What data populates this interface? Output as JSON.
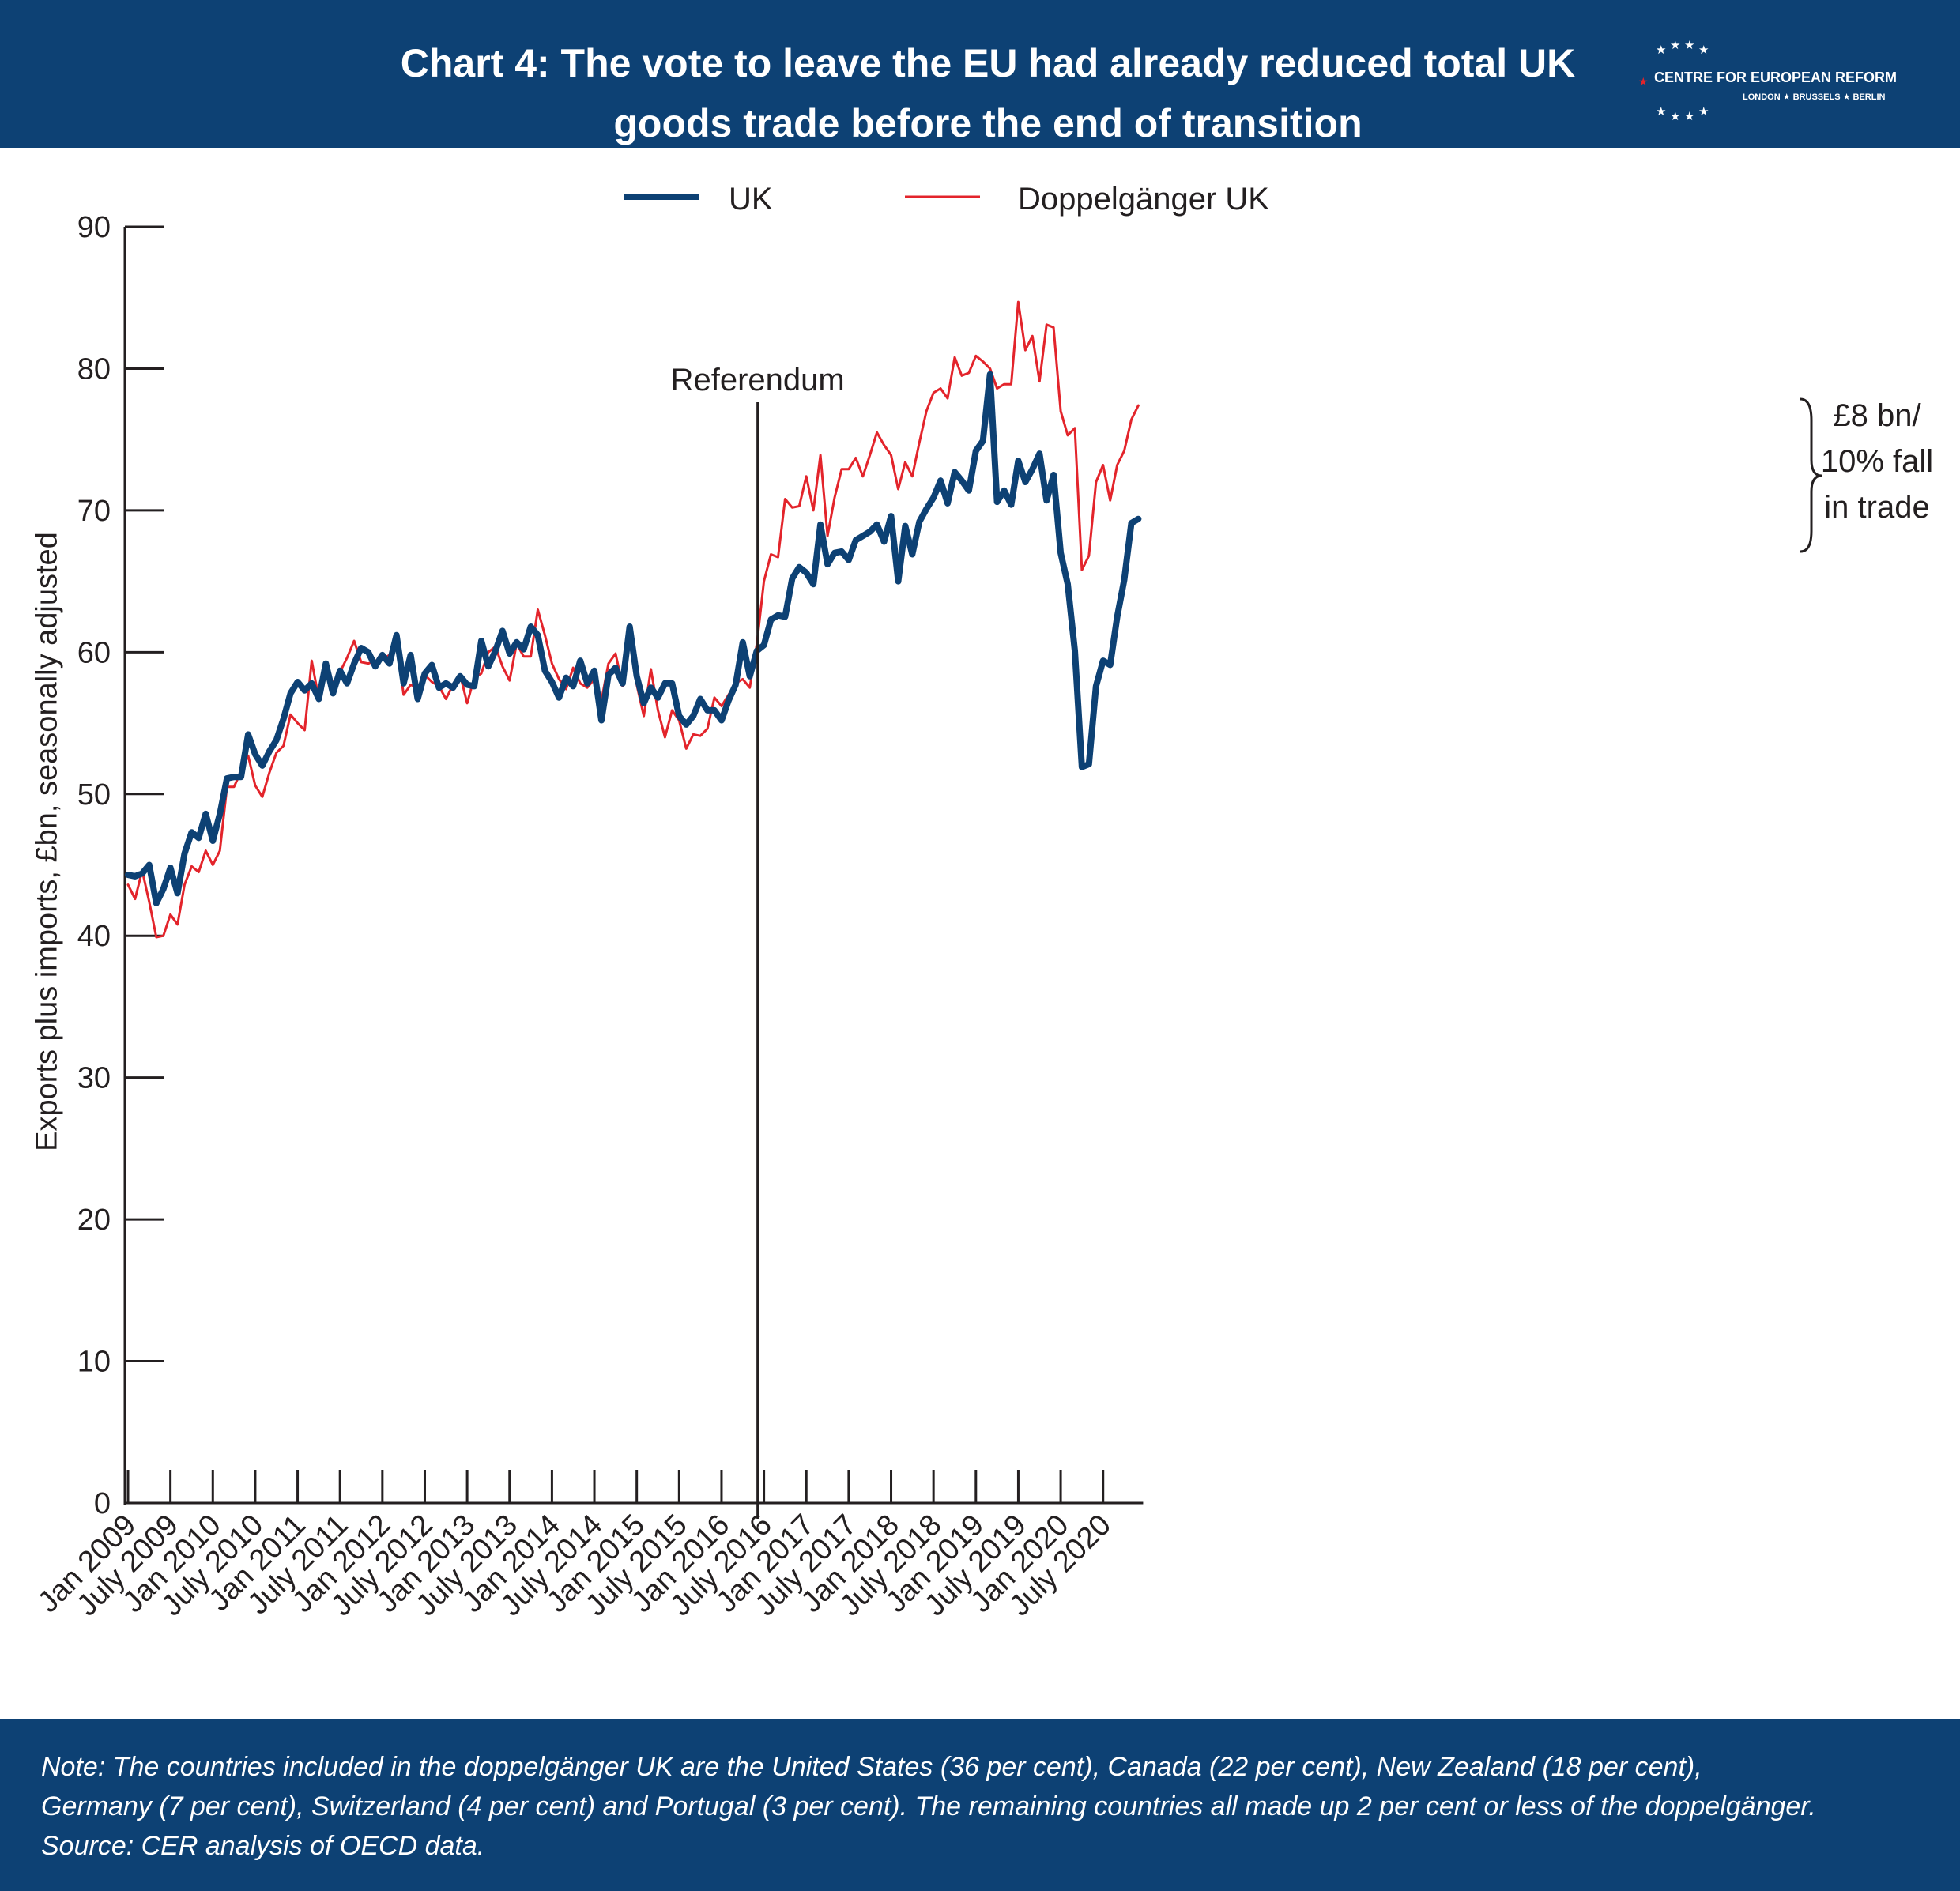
{
  "header": {
    "title_line1": "Chart 4: The vote to leave the EU had already reduced total UK",
    "title_line2": "goods trade before the end of transition",
    "logo_name": "CENTRE FOR EUROPEAN REFORM",
    "logo_cities": "LONDON ★ BRUSSELS ★ BERLIN",
    "background_color": "#0d4174"
  },
  "footer": {
    "note_line1": "Note: The countries included in the doppelgänger UK are the United States (36 per cent), Canada (22 per cent), New Zealand (18 per cent),",
    "note_line2": "Germany (7 per cent), Switzerland (4 per cent) and Portugal (3 per cent). The remaining countries all made up 2 per cent or less of the doppelgänger.",
    "note_line3": "Source: CER analysis of OECD data."
  },
  "chart_data": {
    "type": "line",
    "title": "Chart 4: The vote to leave the EU had already reduced total UK goods trade before the end of transition",
    "ylabel": "Exports plus imports, £bn, seasonally adjusted",
    "xlabel": "",
    "ylim": [
      0,
      90
    ],
    "yticks": [
      "0",
      "10",
      "20",
      "30",
      "40",
      "50",
      "60",
      "70",
      "80",
      "90"
    ],
    "xtick_labels": [
      "Jan 2009",
      "July 2009",
      "Jan 2010",
      "July 2010",
      "Jan 2011",
      "July 2011",
      "Jan 2012",
      "July 2012",
      "Jan 2013",
      "July 2013",
      "Jan 2014",
      "July 2014",
      "Jan 2015",
      "July 2015",
      "Jan 2016",
      "July 2016",
      "Jan 2017",
      "July 2017",
      "Jan 2018",
      "July 2018",
      "Jan 2019",
      "July 2019",
      "Jan 2020",
      "July 2020"
    ],
    "x_start": "Jan 2009",
    "grid": false,
    "legend_position": "top-center",
    "annotation_referendum": "Referendum",
    "referendum_month": "June 2016",
    "gap_annotation_line1": "£8 bn/",
    "gap_annotation_line2": "10% fall",
    "gap_annotation_line3": "in trade",
    "series": [
      {
        "name": "UK",
        "color": "#0d4174",
        "values": [
          44.3,
          44.2,
          44.4,
          45.0,
          42.3,
          43.3,
          44.8,
          43.0,
          45.8,
          47.3,
          46.9,
          48.6,
          46.7,
          48.6,
          51.1,
          51.2,
          51.2,
          54.2,
          52.8,
          52.0,
          53.0,
          53.8,
          55.3,
          57.1,
          57.9,
          57.3,
          57.8,
          56.7,
          59.2,
          57.1,
          58.7,
          57.8,
          59.2,
          60.3,
          60.0,
          59.0,
          59.8,
          59.2,
          61.2,
          57.8,
          59.8,
          56.7,
          58.5,
          59.1,
          57.5,
          57.8,
          57.5,
          58.3,
          57.7,
          57.6,
          60.8,
          59.0,
          60.1,
          61.5,
          59.9,
          60.7,
          60.2,
          61.8,
          61.2,
          58.7,
          57.9,
          56.8,
          58.2,
          57.6,
          59.4,
          57.8,
          58.7,
          55.2,
          58.4,
          58.9,
          57.8,
          61.8,
          58.3,
          56.4,
          57.5,
          56.8,
          57.8,
          57.8,
          55.5,
          54.9,
          55.5,
          56.7,
          55.9,
          55.9,
          55.2,
          56.6,
          57.7,
          60.7,
          58.3,
          60.1,
          60.5,
          62.3,
          62.6,
          62.5,
          65.2,
          66.0,
          65.6,
          64.8,
          69.0,
          66.2,
          67.0,
          67.1,
          66.5,
          67.9,
          68.2,
          68.5,
          69.0,
          67.8,
          69.6,
          65.0,
          68.9,
          66.9,
          69.2,
          70.1,
          70.9,
          72.1,
          70.5,
          72.7,
          72.1,
          71.4,
          74.2,
          74.9,
          79.6,
          70.6,
          71.4,
          70.4,
          73.5,
          72.0,
          72.9,
          74.0,
          70.7,
          72.5,
          67.0,
          64.8,
          60.1,
          51.9,
          52.1,
          57.6,
          59.4,
          59.1,
          62.5,
          65.1,
          69.1,
          69.4
        ]
      },
      {
        "name": "Doppelgänger UK",
        "color": "#e3242b",
        "values": [
          43.6,
          42.6,
          44.6,
          42.4,
          39.9,
          40.0,
          41.5,
          40.8,
          43.6,
          44.9,
          44.5,
          46.0,
          45.0,
          46.0,
          50.5,
          50.5,
          51.6,
          52.7,
          50.6,
          49.8,
          51.5,
          52.9,
          53.4,
          55.6,
          55.0,
          54.5,
          59.4,
          56.7,
          58.6,
          57.8,
          58.6,
          59.6,
          60.8,
          59.3,
          59.2,
          59.4,
          59.5,
          59.8,
          60.7,
          57.0,
          57.7,
          57.5,
          58.4,
          57.9,
          57.6,
          56.7,
          57.7,
          58.4,
          56.4,
          58.2,
          58.5,
          60.0,
          60.4,
          59.0,
          58.0,
          60.6,
          59.7,
          59.7,
          63.0,
          61.2,
          59.2,
          58.1,
          57.4,
          58.9,
          57.8,
          57.5,
          58.1,
          56.6,
          59.2,
          59.9,
          57.6,
          61.0,
          57.7,
          55.5,
          58.8,
          55.9,
          54.0,
          55.9,
          55.2,
          53.2,
          54.2,
          54.1,
          54.6,
          56.8,
          56.2,
          57.0,
          57.8,
          58.1,
          57.5,
          60.6,
          65.0,
          66.9,
          66.7,
          70.8,
          70.2,
          70.3,
          72.4,
          70.0,
          73.9,
          68.2,
          70.9,
          72.9,
          72.9,
          73.7,
          72.4,
          73.9,
          75.5,
          74.6,
          73.9,
          71.5,
          73.4,
          72.4,
          74.8,
          77.0,
          78.3,
          78.6,
          77.9,
          80.8,
          79.5,
          79.7,
          80.9,
          80.5,
          80.0,
          78.6,
          78.9,
          78.9,
          84.7,
          81.3,
          82.3,
          79.1,
          83.1,
          82.9,
          77.0,
          75.3,
          75.8,
          65.8,
          66.8,
          72.0,
          73.2,
          70.7,
          73.2,
          74.2,
          76.4,
          77.4
        ]
      }
    ]
  }
}
